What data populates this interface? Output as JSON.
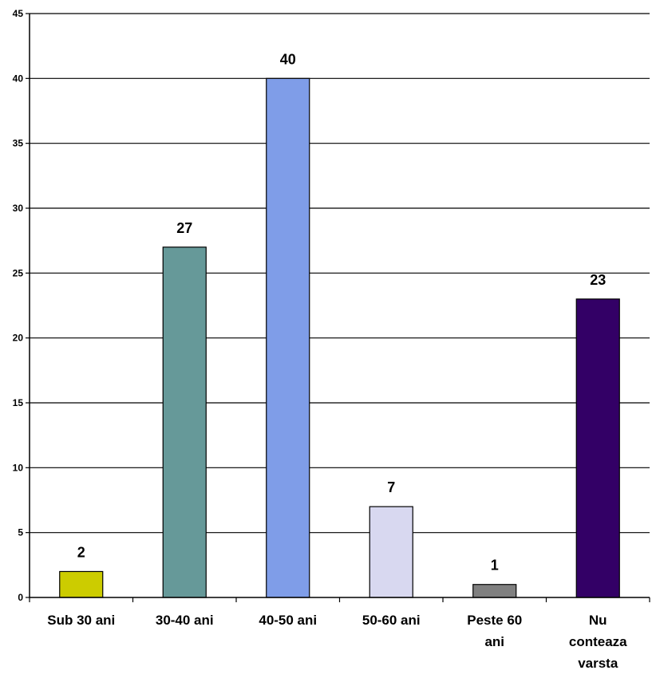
{
  "chart_data": {
    "type": "bar",
    "categories": [
      [
        "Sub 30 ani"
      ],
      [
        "30-40 ani"
      ],
      [
        "40-50 ani"
      ],
      [
        "50-60 ani"
      ],
      [
        "Peste 60",
        "ani"
      ],
      [
        "Nu",
        "conteaza",
        "varsta"
      ]
    ],
    "values": [
      2,
      27,
      40,
      7,
      1,
      23
    ],
    "data_labels": [
      "2",
      "27",
      "40",
      "7",
      "1",
      "23"
    ],
    "colors": [
      "#cccc00",
      "#669999",
      "#7f9de8",
      "#d8d8f0",
      "#808080",
      "#330066"
    ],
    "title": "",
    "xlabel": "",
    "ylabel": "",
    "ylim": [
      0,
      45
    ],
    "yticks": [
      0,
      5,
      10,
      15,
      20,
      25,
      30,
      35,
      40,
      45
    ],
    "grid": true,
    "legend": "none"
  }
}
